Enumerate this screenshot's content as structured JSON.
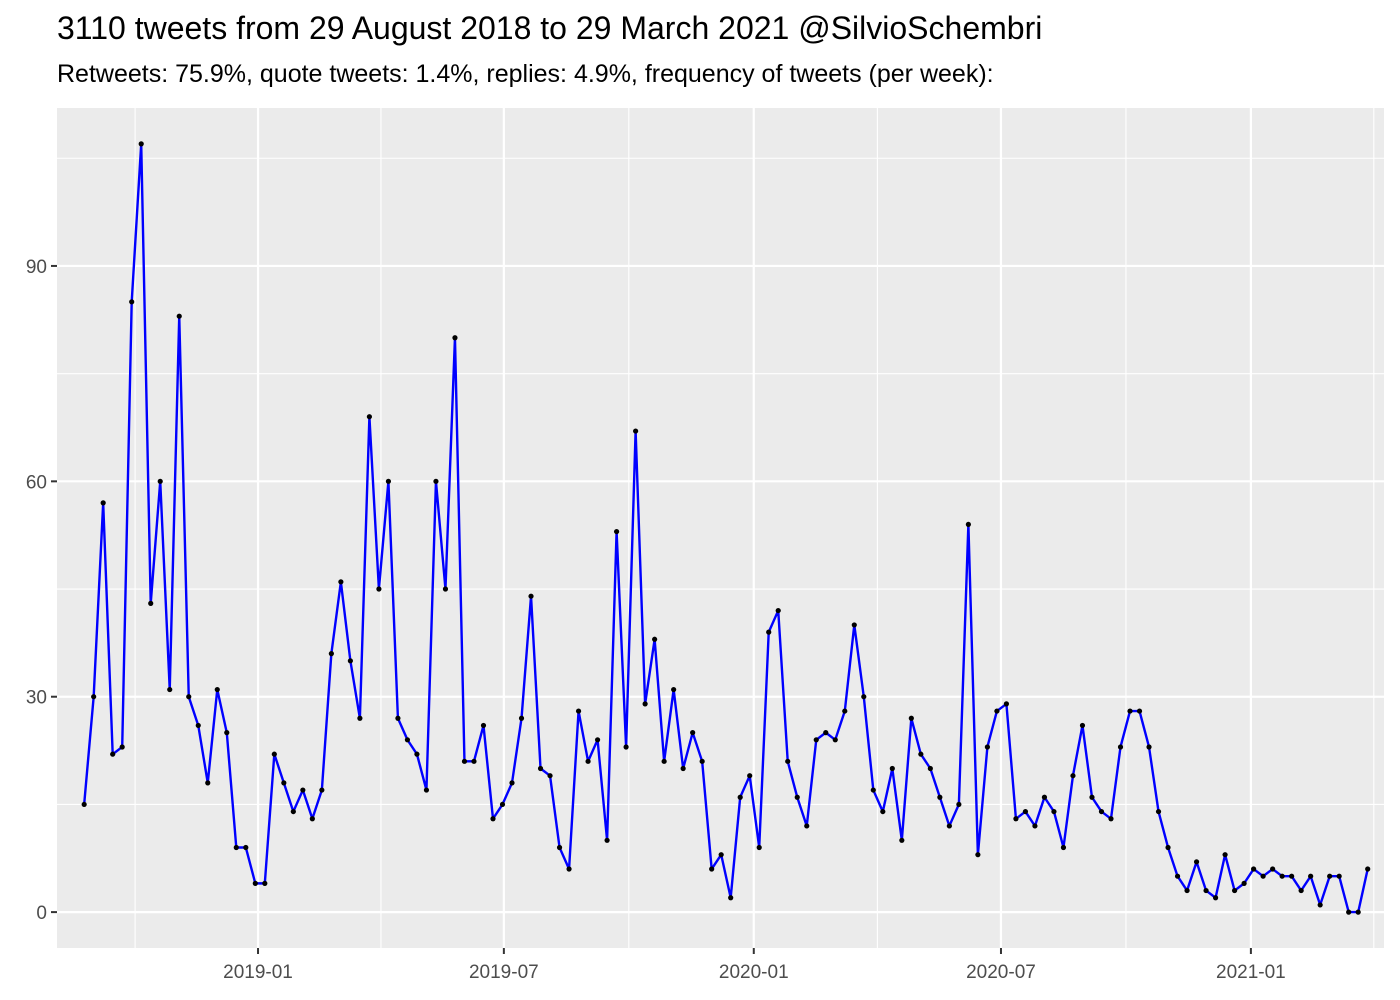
{
  "chart_data": {
    "type": "line",
    "title": "3110 tweets from 29 August 2018 to 29 March 2021 @SilvioSchembri",
    "subtitle": "Retweets: 75.9%, quote tweets: 1.4%, replies: 4.9%, frequency of tweets (per week):",
    "xlabel": "",
    "ylabel": "",
    "x_range": [
      "2018-08-06",
      "2021-04-09"
    ],
    "ylim": [
      -5,
      112
    ],
    "y_ticks": [
      0,
      30,
      60,
      90
    ],
    "y_tick_labels": [
      "0",
      "30",
      "60",
      "90"
    ],
    "x_ticks": [
      "2019-01-01",
      "2019-07-01",
      "2020-01-01",
      "2020-07-01",
      "2021-01-01"
    ],
    "x_tick_labels": [
      "2019-01",
      "2019-07",
      "2020-01",
      "2020-07",
      "2021-01"
    ],
    "grid": true,
    "line_color": "#0000ff",
    "point_color": "#000000",
    "background_color": "#ebebeb",
    "grid_color": "#ffffff",
    "series": [
      {
        "start_date": "2018-08-26",
        "interval_days": 7,
        "values": [
          15,
          30,
          57,
          22,
          23,
          85,
          107,
          43,
          60,
          31,
          83,
          30,
          26,
          18,
          31,
          25,
          9,
          9,
          4,
          4,
          22,
          18,
          14,
          17,
          13,
          17,
          36,
          46,
          35,
          27,
          69,
          45,
          60,
          27,
          24,
          22,
          17,
          60,
          45,
          80,
          21,
          21,
          26,
          13,
          15,
          18,
          27,
          44,
          20,
          19,
          9,
          6,
          28,
          21,
          24,
          10,
          53,
          23,
          67,
          29,
          38,
          21,
          31,
          20,
          25,
          21,
          6,
          8,
          2,
          16,
          19,
          9,
          39,
          42,
          21,
          16,
          12,
          24,
          25,
          24,
          28,
          40,
          30,
          17,
          14,
          20,
          10,
          27,
          22,
          20,
          16,
          12,
          15,
          54,
          8,
          23,
          28,
          29,
          13,
          14,
          12,
          16,
          14,
          9,
          19,
          26,
          16,
          14,
          13,
          23,
          28,
          28,
          23,
          14,
          9,
          5,
          3,
          7,
          3,
          2,
          8,
          3,
          4,
          6,
          5,
          6,
          5,
          5,
          3,
          5,
          1,
          5,
          5,
          0,
          0,
          6
        ]
      }
    ]
  }
}
